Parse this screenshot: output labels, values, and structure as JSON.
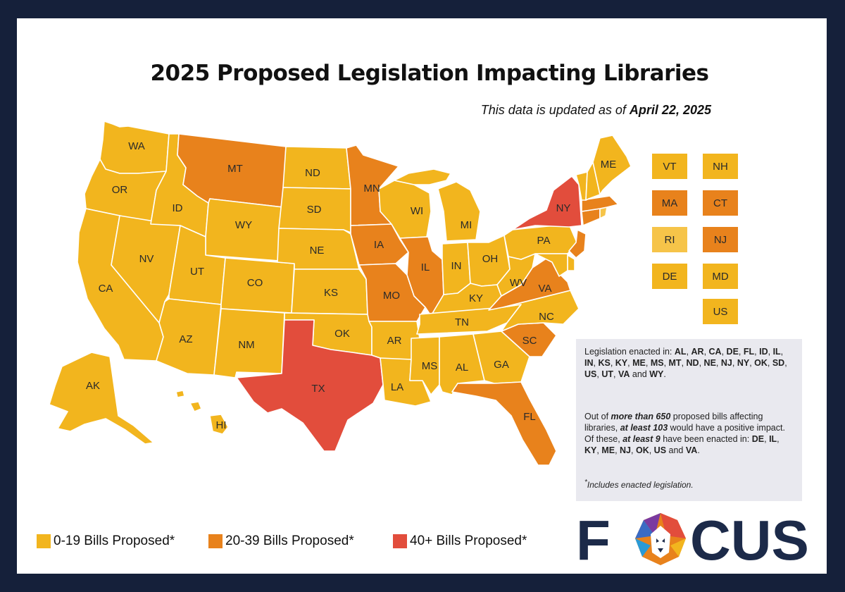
{
  "title": "2025 Proposed Legislation Impacting Libraries",
  "subtitle_prefix": "This data is updated as of",
  "subtitle_date": "April 22, 2025",
  "colors": {
    "low": "#f2b51e",
    "mid": "#e8821c",
    "high": "#e24d3c",
    "ri": "#f6c449",
    "frame": "#15203a"
  },
  "states": [
    {
      "code": "WA",
      "tier": "low"
    },
    {
      "code": "OR",
      "tier": "low"
    },
    {
      "code": "CA",
      "tier": "low"
    },
    {
      "code": "ID",
      "tier": "low"
    },
    {
      "code": "NV",
      "tier": "low"
    },
    {
      "code": "MT",
      "tier": "mid"
    },
    {
      "code": "WY",
      "tier": "low"
    },
    {
      "code": "UT",
      "tier": "low"
    },
    {
      "code": "AZ",
      "tier": "low"
    },
    {
      "code": "CO",
      "tier": "low"
    },
    {
      "code": "NM",
      "tier": "low"
    },
    {
      "code": "ND",
      "tier": "low"
    },
    {
      "code": "SD",
      "tier": "low"
    },
    {
      "code": "NE",
      "tier": "low"
    },
    {
      "code": "KS",
      "tier": "low"
    },
    {
      "code": "OK",
      "tier": "low"
    },
    {
      "code": "TX",
      "tier": "high"
    },
    {
      "code": "MN",
      "tier": "mid"
    },
    {
      "code": "IA",
      "tier": "mid"
    },
    {
      "code": "MO",
      "tier": "mid"
    },
    {
      "code": "AR",
      "tier": "low"
    },
    {
      "code": "LA",
      "tier": "low"
    },
    {
      "code": "WI",
      "tier": "low"
    },
    {
      "code": "IL",
      "tier": "mid"
    },
    {
      "code": "MI",
      "tier": "low"
    },
    {
      "code": "IN",
      "tier": "low"
    },
    {
      "code": "OH",
      "tier": "low"
    },
    {
      "code": "KY",
      "tier": "low"
    },
    {
      "code": "TN",
      "tier": "low"
    },
    {
      "code": "MS",
      "tier": "low"
    },
    {
      "code": "AL",
      "tier": "low"
    },
    {
      "code": "GA",
      "tier": "low"
    },
    {
      "code": "FL",
      "tier": "mid"
    },
    {
      "code": "SC",
      "tier": "mid"
    },
    {
      "code": "NC",
      "tier": "low"
    },
    {
      "code": "VA",
      "tier": "mid"
    },
    {
      "code": "WV",
      "tier": "low"
    },
    {
      "code": "PA",
      "tier": "low"
    },
    {
      "code": "NY",
      "tier": "high"
    },
    {
      "code": "ME",
      "tier": "low"
    },
    {
      "code": "AK",
      "tier": "low"
    },
    {
      "code": "HI",
      "tier": "low"
    }
  ],
  "small_boxes": [
    {
      "code": "VT",
      "tier": "low"
    },
    {
      "code": "NH",
      "tier": "low"
    },
    {
      "code": "MA",
      "tier": "mid"
    },
    {
      "code": "CT",
      "tier": "mid"
    },
    {
      "code": "RI",
      "tier": "ri"
    },
    {
      "code": "NJ",
      "tier": "mid"
    },
    {
      "code": "DE",
      "tier": "low"
    },
    {
      "code": "MD",
      "tier": "low"
    },
    {
      "code": "US",
      "tier": "low"
    }
  ],
  "info": {
    "enacted_prefix": "Legislation enacted in:",
    "enacted_list": [
      "AL",
      "AR",
      "CA",
      "DE",
      "FL",
      "ID",
      "IL",
      "IN",
      "KS",
      "KY",
      "ME",
      "MS",
      "MT",
      "ND",
      "NE",
      "NJ",
      "NY",
      "OK",
      "SD",
      "US",
      "UT",
      "VA"
    ],
    "enacted_last": "WY",
    "para2_a": "Out of",
    "para2_b": "more than 650",
    "para2_c": "proposed bills affecting libraries,",
    "para2_d": "at least 103",
    "para2_e": "would have a positive impact. Of these,",
    "para2_f": "at least 9",
    "para2_g": "have been enacted in:",
    "positive_list": [
      "DE",
      "IL",
      "KY",
      "ME",
      "NJ",
      "OK",
      "US"
    ],
    "positive_last": "VA",
    "and_word": "and",
    "footnote_star": "*",
    "footnote": "Includes enacted legislation."
  },
  "legend": [
    {
      "label": "0-19 Bills Proposed*",
      "tier": "low"
    },
    {
      "label": "20-39 Bills Proposed*",
      "tier": "mid"
    },
    {
      "label": "40+ Bills Proposed*",
      "tier": "high"
    }
  ],
  "logo": {
    "text_left": "F",
    "text_right": "CUS"
  }
}
